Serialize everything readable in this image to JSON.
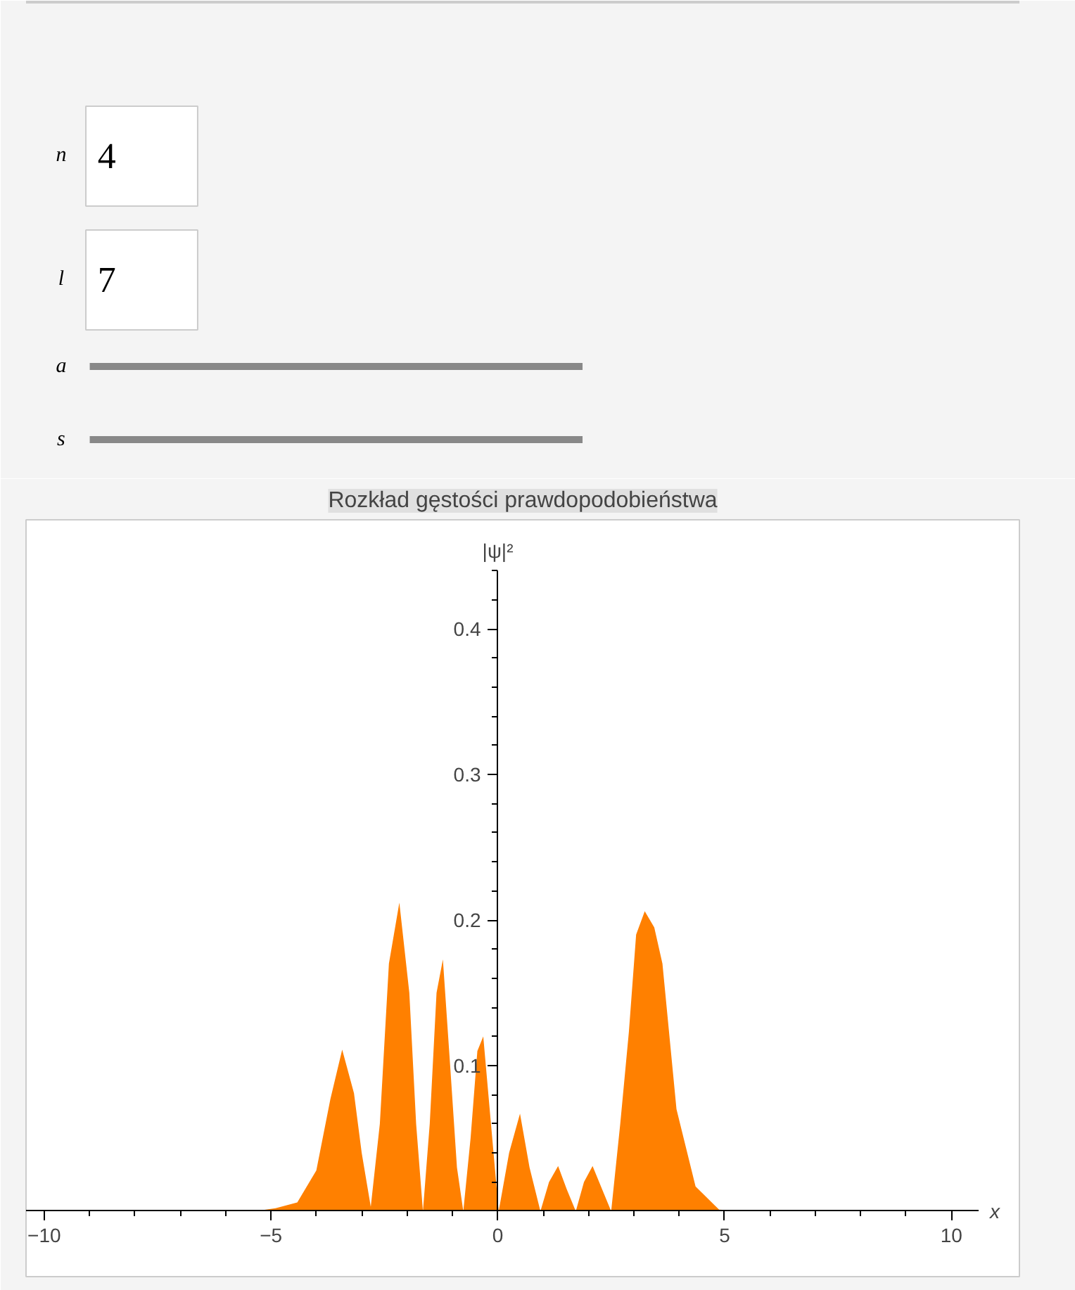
{
  "chart_data": [
    {
      "type": "other",
      "annotations": [
        "n",
        "4",
        "l",
        "7",
        "a",
        "s"
      ]
    },
    {
      "type": "area",
      "title": "Rozkład gęstości prawdopodobieństwa",
      "xlabel": "x",
      "ylabel": "|ψ|²",
      "xlim": [
        -10.4,
        10.6
      ],
      "ylim": [
        0,
        0.44
      ],
      "xticks": [
        {
          "value": -10,
          "label": "−10"
        },
        {
          "value": -5,
          "label": "−5"
        },
        0,
        5,
        10
      ],
      "yticks": [
        0.1,
        0.2,
        0.3,
        0.4
      ],
      "grid": false,
      "series": [
        {
          "color": "#ff8000",
          "x": [
            -10,
            -6,
            -5.36,
            -4.9,
            -4.42,
            -4.0,
            -3.69,
            -3.43,
            -3.17,
            -3.0,
            -2.8,
            -2.6,
            -2.4,
            -2.17,
            -1.95,
            -1.8,
            -1.65,
            -1.5,
            -1.35,
            -1.21,
            -1.05,
            -0.9,
            -0.76,
            -0.6,
            -0.45,
            -0.32,
            -0.15,
            0.02,
            0.25,
            0.49,
            0.7,
            0.94,
            1.13,
            1.33,
            1.52,
            1.72,
            1.9,
            2.09,
            2.3,
            2.5,
            2.7,
            2.89,
            3.05,
            3.24,
            3.45,
            3.63,
            3.94,
            4.36,
            4.88,
            5.5,
            10
          ],
          "values": [
            0,
            0,
            0,
            0.002,
            0.006,
            0.028,
            0.077,
            0.111,
            0.081,
            0.04,
            0.003,
            0.06,
            0.17,
            0.212,
            0.15,
            0.06,
            0,
            0.06,
            0.15,
            0.173,
            0.1,
            0.03,
            0,
            0.05,
            0.11,
            0.12,
            0.06,
            0,
            0.04,
            0.067,
            0.03,
            0,
            0.02,
            0.031,
            0.015,
            0,
            0.02,
            0.031,
            0.015,
            0,
            0.06,
            0.123,
            0.19,
            0.206,
            0.195,
            0.17,
            0.07,
            0.017,
            0.001,
            0,
            0
          ]
        }
      ]
    }
  ]
}
